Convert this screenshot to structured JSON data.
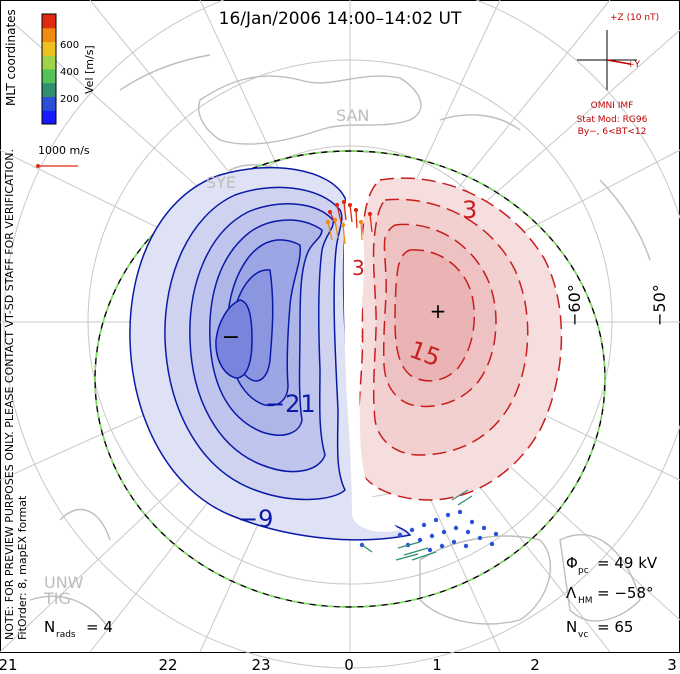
{
  "title": "16/Jan/2006 14:00–14:02 UT",
  "colorbar": {
    "unit_label": "Vel [m/s]",
    "ticks": [
      "600",
      "400",
      "200"
    ],
    "colors": [
      "#1a1aff",
      "#2b4fd8",
      "#2f8f6e",
      "#55c255",
      "#9fd34a",
      "#f0c020",
      "#f08a10",
      "#e02a10"
    ]
  },
  "coords_label": "MLT coordinates",
  "ref_vector_label": "1000 m/s",
  "side_note": "NOTE: FOR PREVIEW PURPOSES ONLY. PLEASE CONTACT VT-SD STAFF FOR VERIFICATION.",
  "side_note2": "FitOrder: 8, mapEX format",
  "imf": {
    "z_label": "+Z (10 nT)",
    "y_label": "+Y",
    "source": "OMNI IMF",
    "model": "Stat Mod: RG96",
    "bin": "By−, 6<BT<12"
  },
  "stations": [
    "SAN",
    "SYE",
    "UNW",
    "TIG"
  ],
  "lat_labels": [
    "−60°",
    "−50°"
  ],
  "mlt_labels": [
    "21",
    "22",
    "23",
    "0",
    "1",
    "2",
    "3"
  ],
  "contour_labels": {
    "neg_21": "−21",
    "neg_9": "−9",
    "pos_3a": "3",
    "pos_3b": "3",
    "pos_15": "15",
    "min_mark": "−",
    "max_mark": "+"
  },
  "stats": {
    "phi_label": "Φ",
    "phi_sub": "pc",
    "phi_value": "= 49 kV",
    "lambda_label": "Λ",
    "lambda_sub": "HM",
    "lambda_value": "= −58°",
    "nvc_label": "N",
    "nvc_sub": "vc",
    "nvc_value": "= 65",
    "nrads_label": "N",
    "nrads_sub": "rads",
    "nrads_value": "= 4"
  },
  "colors": {
    "negative_fill": "#dfe2f4",
    "negative_line": "#0a1aa8",
    "positive_fill": "#f6dede",
    "positive_line": "#c81e1e",
    "grid": "#c8c8c8",
    "land": "#bdbdbd",
    "hmb": "#7fe060"
  }
}
